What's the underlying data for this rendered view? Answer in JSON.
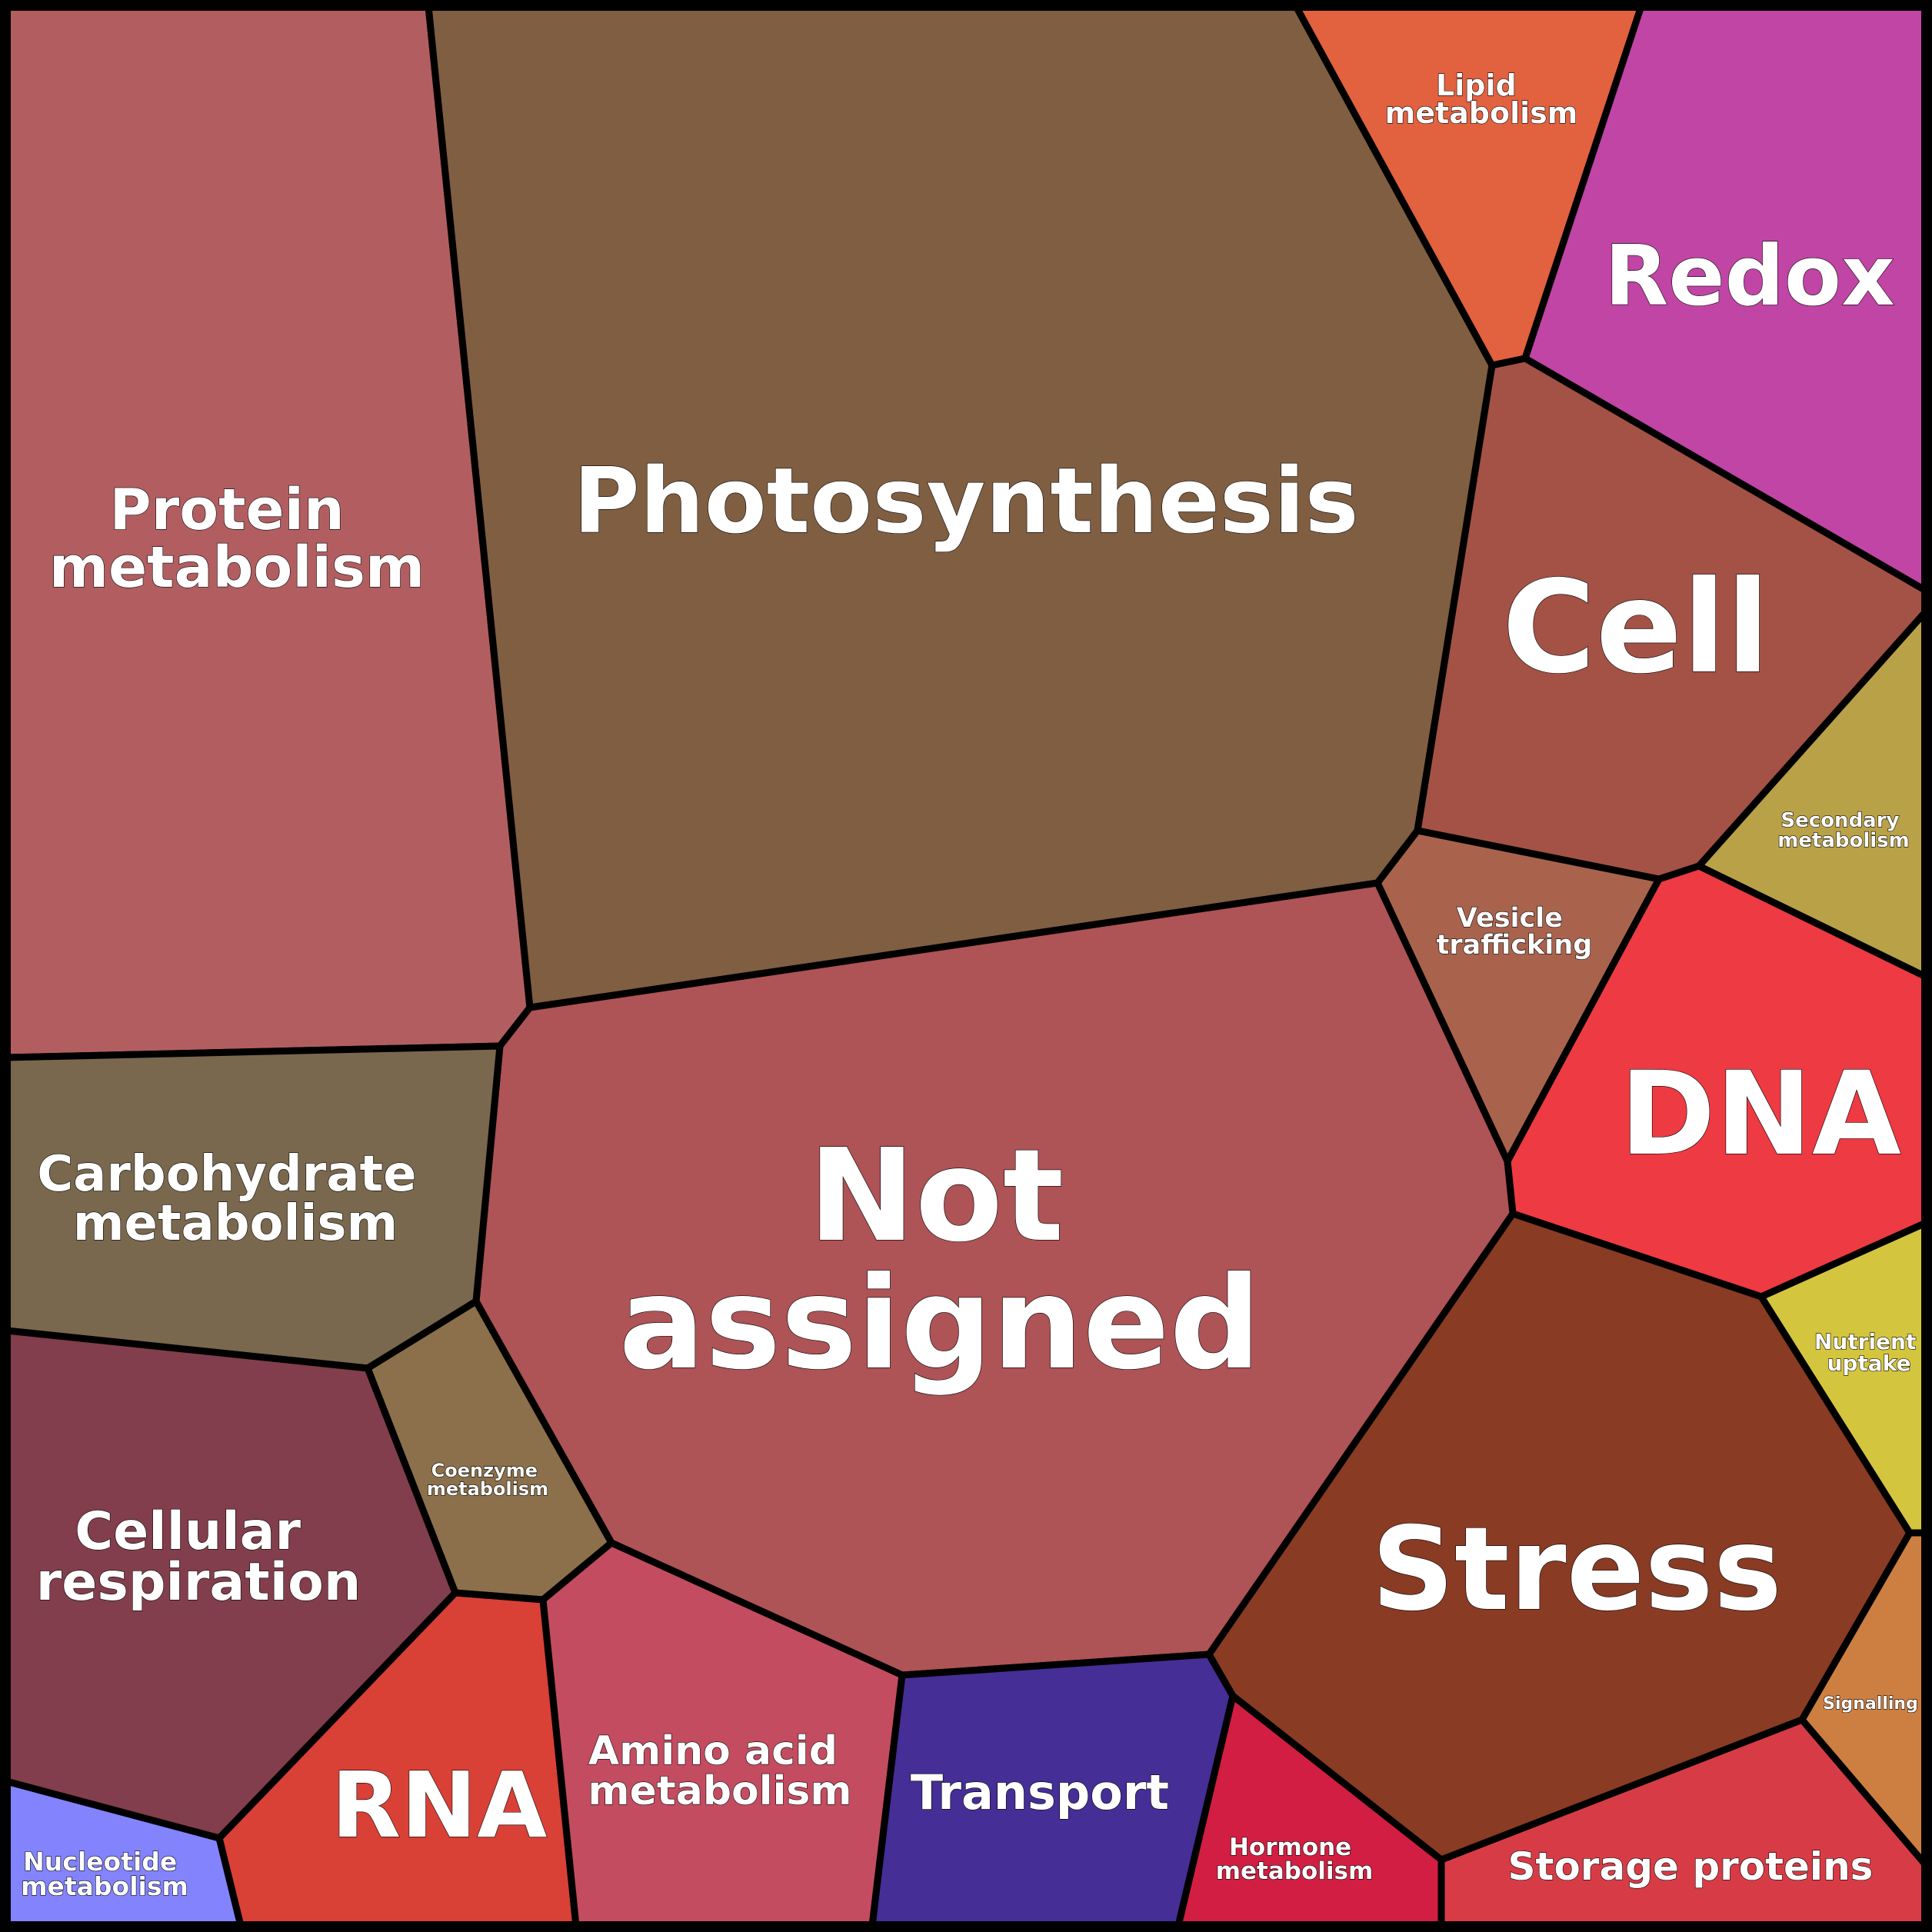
{
  "diagram": {
    "type": "voronoi-treemap",
    "cells": [
      {
        "id": "protein",
        "label_lines": [
          "Protein",
          "metabolism"
        ],
        "color": "#b25e61"
      },
      {
        "id": "photosynthesis",
        "label_lines": [
          "Photosynthesis"
        ],
        "color": "#805e42"
      },
      {
        "id": "lipid",
        "label_lines": [
          "Lipid",
          "metabolism"
        ],
        "color": "#e2613f"
      },
      {
        "id": "redox",
        "label_lines": [
          "Redox"
        ],
        "color": "#c045a5"
      },
      {
        "id": "cell",
        "label_lines": [
          "Cell"
        ],
        "color": "#a45246"
      },
      {
        "id": "secondary",
        "label_lines": [
          "Secondary",
          "metabolism"
        ],
        "color": "#b9a147"
      },
      {
        "id": "vesicle",
        "label_lines": [
          "Vesicle",
          "trafficking"
        ],
        "color": "#a9634c"
      },
      {
        "id": "dna",
        "label_lines": [
          "DNA"
        ],
        "color": "#ee3a43"
      },
      {
        "id": "not-assigned",
        "label_lines": [
          "Not",
          "assigned"
        ],
        "color": "#ae5356"
      },
      {
        "id": "carbohydrate",
        "label_lines": [
          "Carbohydrate",
          "metabolism"
        ],
        "color": "#79684e"
      },
      {
        "id": "coenzyme",
        "label_lines": [
          "Coenzyme",
          "metabolism"
        ],
        "color": "#8b704b"
      },
      {
        "id": "cellular-respiration",
        "label_lines": [
          "Cellular",
          "respiration"
        ],
        "color": "#823e4c"
      },
      {
        "id": "rna",
        "label_lines": [
          "RNA"
        ],
        "color": "#d94036"
      },
      {
        "id": "nucleotide",
        "label_lines": [
          "Nucleotide",
          "metabolism"
        ],
        "color": "#8383fe"
      },
      {
        "id": "amino-acid",
        "label_lines": [
          "Amino acid",
          "metabolism"
        ],
        "color": "#c44c60"
      },
      {
        "id": "transport",
        "label_lines": [
          "Transport"
        ],
        "color": "#452e96"
      },
      {
        "id": "hormone",
        "label_lines": [
          "Hormone",
          "metabolism"
        ],
        "color": "#d21e42"
      },
      {
        "id": "storage",
        "label_lines": [
          "Storage proteins"
        ],
        "color": "#d73c46"
      },
      {
        "id": "stress",
        "label_lines": [
          "Stress"
        ],
        "color": "#8a3b24"
      },
      {
        "id": "nutrient",
        "label_lines": [
          "Nutrient",
          "uptake"
        ],
        "color": "#d4c53e"
      },
      {
        "id": "signalling",
        "label_lines": [
          "Signalling"
        ],
        "color": "#cd7f41"
      }
    ]
  }
}
